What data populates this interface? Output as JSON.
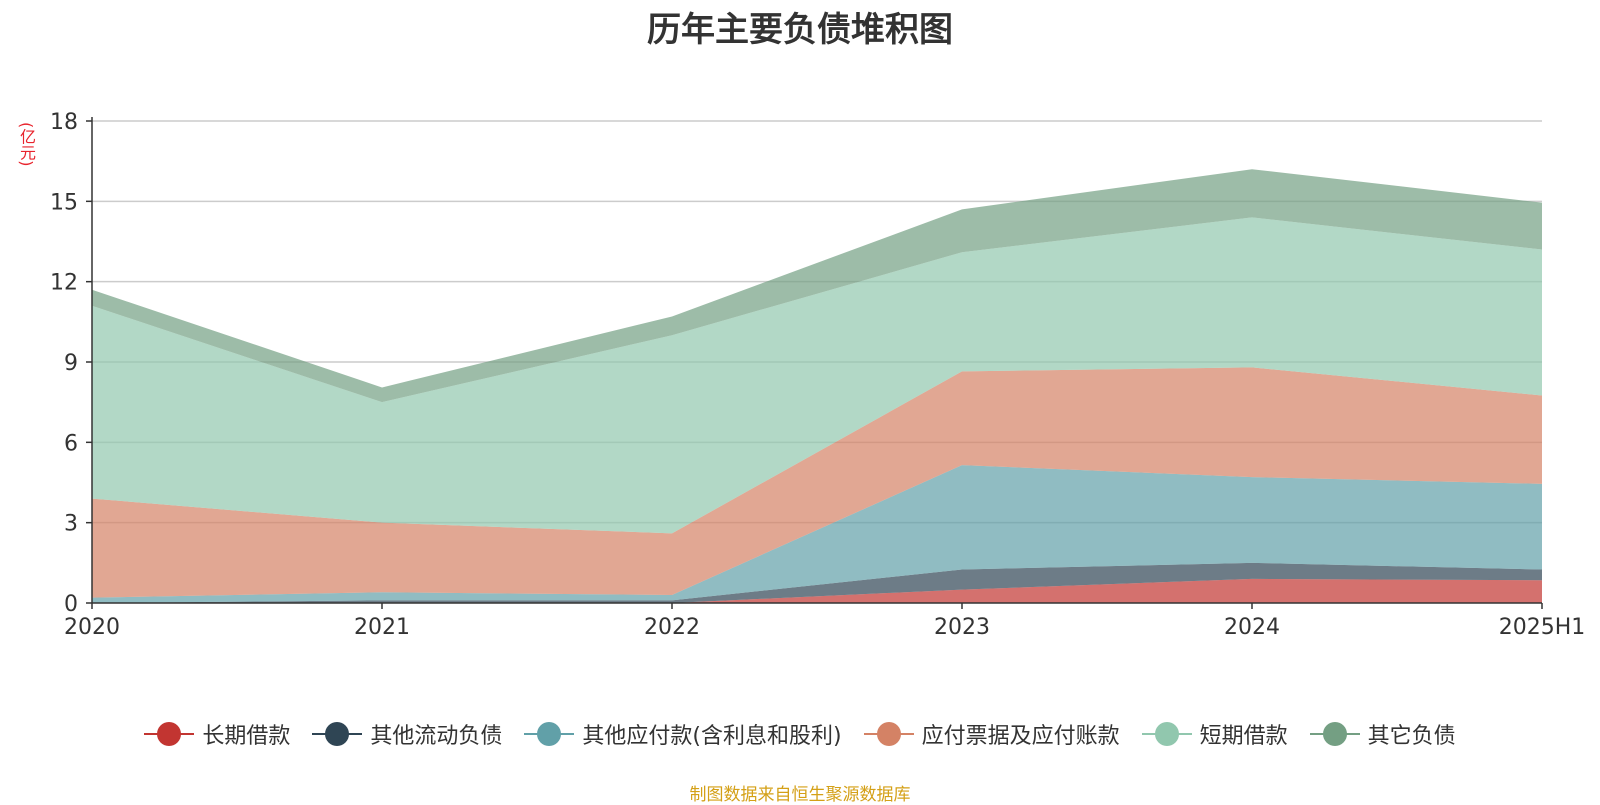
{
  "chart_data": {
    "type": "area",
    "stacked": true,
    "title": "历年主要负债堆积图",
    "unit_label": "(亿元)",
    "categories": [
      "2020",
      "2021",
      "2022",
      "2023",
      "2024",
      "2025H1"
    ],
    "ylim": [
      0,
      18
    ],
    "yticks": [
      "0",
      "3",
      "6",
      "9",
      "12",
      "15",
      "18"
    ],
    "grid": true,
    "legend_position": "bottom",
    "series": [
      {
        "name": "长期借款",
        "color": "#c23531",
        "values": [
          0.0,
          0.0,
          0.0,
          0.5,
          0.9,
          0.85
        ]
      },
      {
        "name": "其他流动负债",
        "color": "#2f4554",
        "values": [
          0.0,
          0.1,
          0.1,
          0.75,
          0.6,
          0.4
        ]
      },
      {
        "name": "其他应付款(含利息和股利)",
        "color": "#61a0a8",
        "values": [
          0.2,
          0.3,
          0.2,
          3.9,
          3.2,
          3.2
        ]
      },
      {
        "name": "应付票据及应付账款",
        "color": "#d48265",
        "values": [
          3.7,
          2.6,
          2.3,
          3.5,
          4.1,
          3.3
        ]
      },
      {
        "name": "短期借款",
        "color": "#91c7ae",
        "values": [
          7.2,
          4.5,
          7.4,
          4.45,
          5.6,
          5.45
        ]
      },
      {
        "name": "其它负债",
        "color": "#749f83",
        "values": [
          0.6,
          0.55,
          0.7,
          1.6,
          1.8,
          1.75
        ]
      }
    ]
  },
  "source_note": "制图数据来自恒生聚源数据库"
}
